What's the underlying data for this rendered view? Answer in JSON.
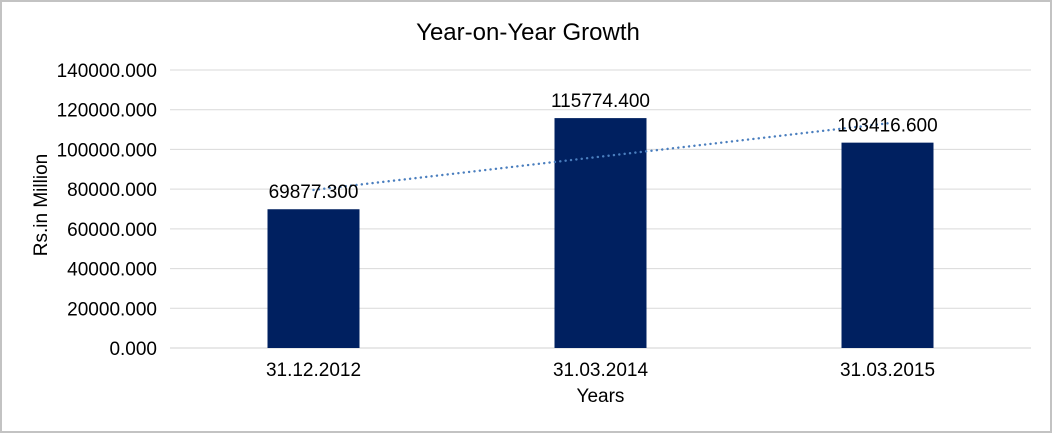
{
  "chart_data": {
    "type": "bar",
    "title": "Year-on-Year Growth",
    "xlabel": "Years",
    "ylabel": "Rs.in Million",
    "categories": [
      "31.12.2012",
      "31.03.2014",
      "31.03.2015"
    ],
    "values": [
      69877.3,
      115774.4,
      103416.6
    ],
    "data_labels": [
      "69877.300",
      "115774.400",
      "103416.600"
    ],
    "ylim": [
      0,
      140000
    ],
    "ytick_step": 20000,
    "ytick_labels": [
      "0.000",
      "20000.000",
      "40000.000",
      "60000.000",
      "80000.000",
      "100000.000",
      "120000.000",
      "140000.000"
    ],
    "grid": true,
    "legend_position": "none",
    "trendline": {
      "type": "linear",
      "style": "dotted"
    },
    "colors": {
      "bar": "#002060",
      "trendline": "#4a7ebe",
      "gridline": "#d9d9d9",
      "axis_line": "#d0d0d0",
      "text": "#000000",
      "frame_border": "#c3c3c3",
      "background": "#ffffff"
    }
  }
}
